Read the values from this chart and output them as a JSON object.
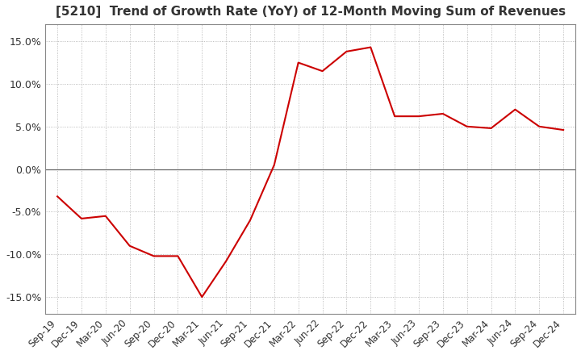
{
  "title": "[5210]  Trend of Growth Rate (YoY) of 12-Month Moving Sum of Revenues",
  "title_fontsize": 11,
  "line_color": "#cc0000",
  "background_color": "#ffffff",
  "grid_color": "#aaaaaa",
  "zero_line_color": "#555555",
  "ylim": [
    -0.17,
    0.17
  ],
  "yticks": [
    -0.15,
    -0.1,
    -0.05,
    0.0,
    0.05,
    0.1,
    0.15
  ],
  "dates": [
    "Sep-19",
    "Dec-19",
    "Mar-20",
    "Jun-20",
    "Sep-20",
    "Dec-20",
    "Mar-21",
    "Jun-21",
    "Sep-21",
    "Dec-21",
    "Mar-22",
    "Jun-22",
    "Sep-22",
    "Dec-22",
    "Mar-23",
    "Jun-23",
    "Sep-23",
    "Dec-23",
    "Mar-24",
    "Jun-24",
    "Sep-24",
    "Dec-24"
  ],
  "values": [
    -0.032,
    -0.058,
    -0.055,
    -0.09,
    -0.102,
    -0.102,
    -0.15,
    -0.108,
    -0.06,
    0.005,
    0.125,
    0.115,
    0.138,
    0.143,
    0.062,
    0.062,
    0.065,
    0.05,
    0.048,
    0.07,
    0.05,
    0.046
  ]
}
